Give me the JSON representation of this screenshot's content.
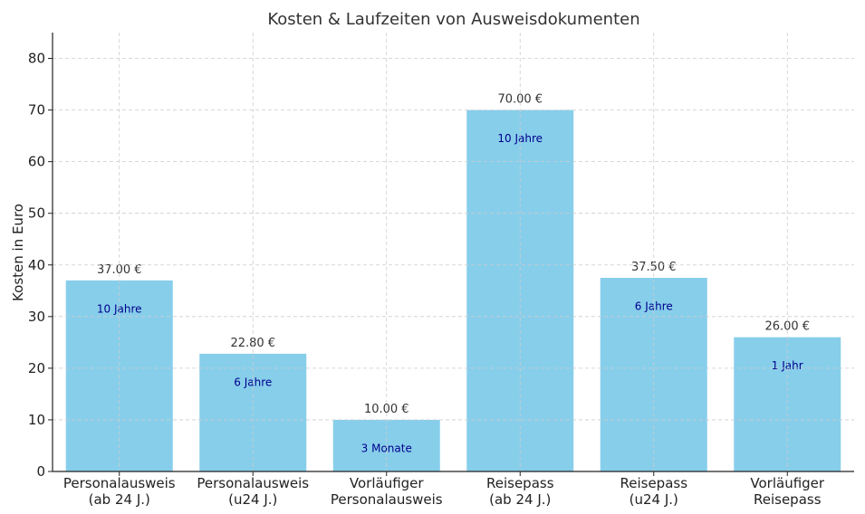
{
  "chart_data": {
    "type": "bar",
    "title": "Kosten & Laufzeiten von Ausweisdokumenten",
    "xlabel": "",
    "ylabel": "Kosten in Euro",
    "ylim": [
      0,
      85
    ],
    "yticks": [
      0,
      10,
      20,
      30,
      40,
      50,
      60,
      70,
      80
    ],
    "grid": true,
    "categories": [
      [
        "Personalausweis",
        "(ab 24 J.)"
      ],
      [
        "Personalausweis",
        "(u24 J.)"
      ],
      [
        "Vorläufiger",
        "Personalausweis"
      ],
      [
        "Reisepass",
        "(ab 24 J.)"
      ],
      [
        "Reisepass",
        "(u24 J.)"
      ],
      [
        "Vorläufiger",
        "Reisepass"
      ]
    ],
    "values": [
      37.0,
      22.8,
      10.0,
      70.0,
      37.5,
      26.0
    ],
    "value_labels": [
      "37.00 €",
      "22.80 €",
      "10.00 €",
      "70.00 €",
      "37.50 €",
      "26.00 €"
    ],
    "duration_labels": [
      "10 Jahre",
      "6 Jahre",
      "3 Monate",
      "10 Jahre",
      "6 Jahre",
      "1 Jahr"
    ],
    "colors": {
      "bar": "#87ceeb",
      "duration_text": "#00008b",
      "value_text": "#333333",
      "axis": "#222222",
      "grid": "#cccccc"
    }
  }
}
